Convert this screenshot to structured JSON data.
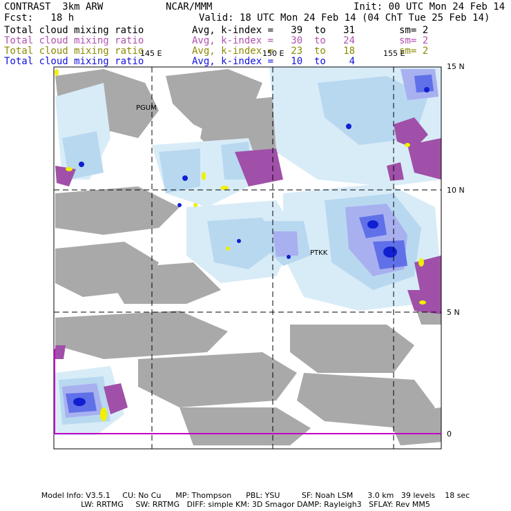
{
  "header": {
    "left_title": "CONTRAST  3km ARW",
    "center_title": "NCAR/MMM",
    "init": "Init: 00 UTC Mon 24 Feb 14",
    "fcst": "Fcst:   18 h",
    "valid": "Valid: 18 UTC Mon 24 Feb 14 (04 ChT Tue 25 Feb 14)"
  },
  "legend": [
    {
      "field": "Total cloud mixing ratio",
      "stat": "Avg, k-index =   39  to   31",
      "smooth": "sm= 2",
      "color": "#000000"
    },
    {
      "field": "Total cloud mixing ratio",
      "stat": "Avg, k-index =   30  to   24",
      "smooth": "sm= 2",
      "color": "#b050b0"
    },
    {
      "field": "Total cloud mixing ratio",
      "stat": "Avg, k-index =   23  to   18",
      "smooth": "sm= 2",
      "color": "#8a8a00"
    },
    {
      "field": "Total cloud mixing ratio",
      "stat": "Avg, k-index =   10  to    4",
      "smooth": "",
      "color": "#1010e0"
    }
  ],
  "map": {
    "lon_labels": [
      "145 E",
      "150 E",
      "155 E"
    ],
    "lat_labels": [
      "15 N",
      "10 N",
      "5 N",
      "0"
    ],
    "stations": [
      "PGUM",
      "PTKK"
    ],
    "colors": {
      "gray_cloud": "#a0a0a0",
      "purple_cloud": "#a050a8",
      "yellow_cloud": "#f0f000",
      "pale_blue": "#d8ecf8",
      "light_blue": "#b8d8f0",
      "lavender": "#a8b0f0",
      "medium_blue": "#6070e8",
      "dark_blue": "#1020d0",
      "equator_line": "#c000c0"
    }
  },
  "footer": {
    "line1": "Model Info: V3.5.1     CU: No Cu      MP: Thompson      PBL: YSU         SF: Noah LSM      3.0 km   39 levels    18 sec",
    "line2": "LW: RRTMG     SW: RRTMG   DIFF: simple KM: 3D Smagor DAMP: Rayleigh3   SFLAY: Rev MM5"
  }
}
